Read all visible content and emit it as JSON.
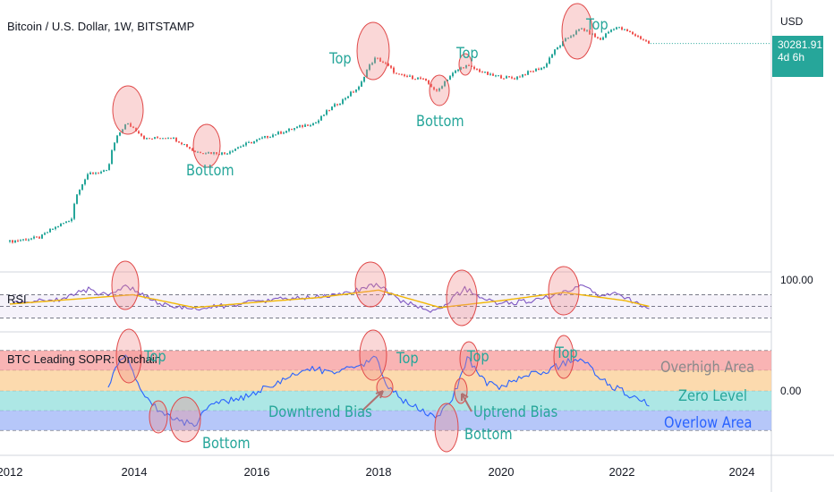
{
  "header": {
    "symbol_title": "Bitcoin / U.S. Dollar, 1W, BITSTAMP",
    "currency": "USD",
    "last_price": "30281.91",
    "countdown": "4d 6h"
  },
  "colors": {
    "up": "#26a69a",
    "down": "#ef5350",
    "rsi_line": "#7e57c2",
    "rsi_ma": "#f2b705",
    "sopr_line": "#2962ff",
    "annotation_text": "#26a69a",
    "highlight_circle": "#f28b8b"
  },
  "chart_data": [
    {
      "type": "candlestick",
      "title": "Bitcoin / U.S. Dollar, 1W, BITSTAMP",
      "scale": "log",
      "y_unit": "USD",
      "last_value": 30281.91,
      "x": [
        2012.0,
        2012.5,
        2013.0,
        2013.3,
        2013.6,
        2013.9,
        2014.2,
        2014.6,
        2015.0,
        2015.5,
        2016.0,
        2016.5,
        2017.0,
        2017.4,
        2017.7,
        2017.95,
        2018.3,
        2018.7,
        2018.95,
        2019.4,
        2019.8,
        2020.2,
        2020.7,
        2020.95,
        2021.3,
        2021.6,
        2021.85,
        2022.2,
        2022.4
      ],
      "y": [
        5,
        6,
        13,
        100,
        110,
        900,
        450,
        500,
        260,
        240,
        420,
        650,
        950,
        2400,
        4500,
        16000,
        7500,
        6400,
        3500,
        11500,
        7500,
        6500,
        10800,
        28000,
        58000,
        35000,
        63000,
        42000,
        30281.91
      ],
      "annotations": [
        {
          "text": "Top",
          "x": 2017.95
        },
        {
          "text": "Bottom",
          "x": 2015.0
        },
        {
          "text": "Top",
          "x": 2019.4
        },
        {
          "text": "Bottom",
          "x": 2018.95
        },
        {
          "text": "Top",
          "x": 2021.3
        }
      ]
    },
    {
      "type": "line",
      "title": "RSI",
      "y_axis_label": "100.00",
      "series": [
        {
          "name": "RSI",
          "x": [
            2012.0,
            2012.8,
            2013.3,
            2013.6,
            2013.9,
            2014.5,
            2015.0,
            2015.8,
            2016.4,
            2017.0,
            2017.5,
            2017.95,
            2018.4,
            2018.9,
            2019.4,
            2019.9,
            2020.4,
            2020.95,
            2021.3,
            2021.6,
            2021.9,
            2022.2,
            2022.4
          ],
          "y": [
            55,
            62,
            80,
            66,
            85,
            52,
            45,
            55,
            62,
            66,
            72,
            88,
            58,
            40,
            80,
            55,
            58,
            70,
            86,
            66,
            72,
            55,
            46
          ]
        },
        {
          "x": [
            2012.0,
            2013.0,
            2014.0,
            2015.0,
            2016.0,
            2017.0,
            2018.0,
            2019.0,
            2020.0,
            2021.0,
            2022.0,
            2022.4
          ],
          "y": [
            54,
            62,
            70,
            48,
            57,
            65,
            78,
            48,
            60,
            74,
            60,
            50
          ]
        }
      ]
    },
    {
      "type": "line",
      "title": "BTC Leading SOPR: Onchain",
      "y_axis_label": "0.00",
      "zones": [
        {
          "label": "Overhigh Area"
        },
        {
          "label": "Zero Level"
        },
        {
          "label": "Overlow Area"
        }
      ],
      "series": [
        {
          "name": "BTC Leading SOPR",
          "x": [
            2013.6,
            2013.75,
            2013.9,
            2014.1,
            2014.4,
            2014.7,
            2015.0,
            2015.3,
            2015.8,
            2016.3,
            2016.8,
            2017.3,
            2017.6,
            2017.95,
            2018.1,
            2018.4,
            2018.7,
            2018.95,
            2019.2,
            2019.45,
            2019.7,
            2020.0,
            2020.4,
            2020.8,
            2021.1,
            2021.3,
            2021.6,
            2022.0,
            2022.4
          ],
          "y": [
            0.1,
            0.65,
            0.95,
            0.05,
            -0.45,
            -0.75,
            -0.85,
            -0.35,
            -0.15,
            0.15,
            0.55,
            0.5,
            0.55,
            0.85,
            0.2,
            -0.25,
            -0.5,
            -0.7,
            -0.2,
            0.85,
            0.25,
            0.1,
            0.4,
            0.55,
            0.75,
            0.85,
            0.3,
            -0.05,
            -0.35
          ]
        }
      ],
      "annotations": [
        {
          "text": "Top",
          "x": 2013.9
        },
        {
          "text": "Bottom",
          "x": 2015.0
        },
        {
          "text": "Top",
          "x": 2018.2
        },
        {
          "text": "Downtrend Bias",
          "x": 2018.1
        },
        {
          "text": "Top",
          "x": 2019.5
        },
        {
          "text": "Uptrend Bias",
          "x": 2019.4
        },
        {
          "text": "Bottom",
          "x": 2018.95
        },
        {
          "text": "Top",
          "x": 2021.1
        }
      ]
    }
  ],
  "x_axis": {
    "ticks": [
      "2012",
      "2014",
      "2016",
      "2018",
      "2020",
      "2022",
      "2024"
    ]
  }
}
